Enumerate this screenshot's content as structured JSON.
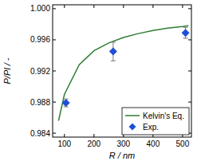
{
  "chart_data": {
    "type": "line",
    "x_label": "R / nm",
    "y_label": "P/Pl / -",
    "xlim": [
      60,
      530
    ],
    "xticks": [
      100,
      200,
      300,
      400,
      500
    ],
    "ylim": [
      0.9835,
      1.0005
    ],
    "yticks": [
      {
        "value": 0.984,
        "label": "0.984"
      },
      {
        "value": 0.988,
        "label": "0.988"
      },
      {
        "value": 0.992,
        "label": "0.992"
      },
      {
        "value": 0.996,
        "label": "0.996"
      },
      {
        "value": 1.0,
        "label": "1.000"
      }
    ],
    "legend": "bottom-right",
    "series": [
      {
        "name": "Kelvin's Eq.",
        "type": "line",
        "color": "#2e7d32",
        "line_style": "solid",
        "x": [
          80,
          100,
          150,
          200,
          250,
          300,
          350,
          400,
          450,
          500,
          520
        ],
        "values": [
          0.9856,
          0.989,
          0.9928,
          0.9946,
          0.9956,
          0.9963,
          0.9968,
          0.9972,
          0.9975,
          0.9977,
          0.9978
        ]
      },
      {
        "name": "Exp.",
        "type": "scatter",
        "color": "#1f4fd6",
        "marker": "diamond",
        "x": [
          105,
          265,
          510
        ],
        "values": [
          0.9879,
          0.9945,
          0.9969
        ],
        "errors": [
          0.0005,
          0.0012,
          0.0007
        ]
      }
    ]
  }
}
